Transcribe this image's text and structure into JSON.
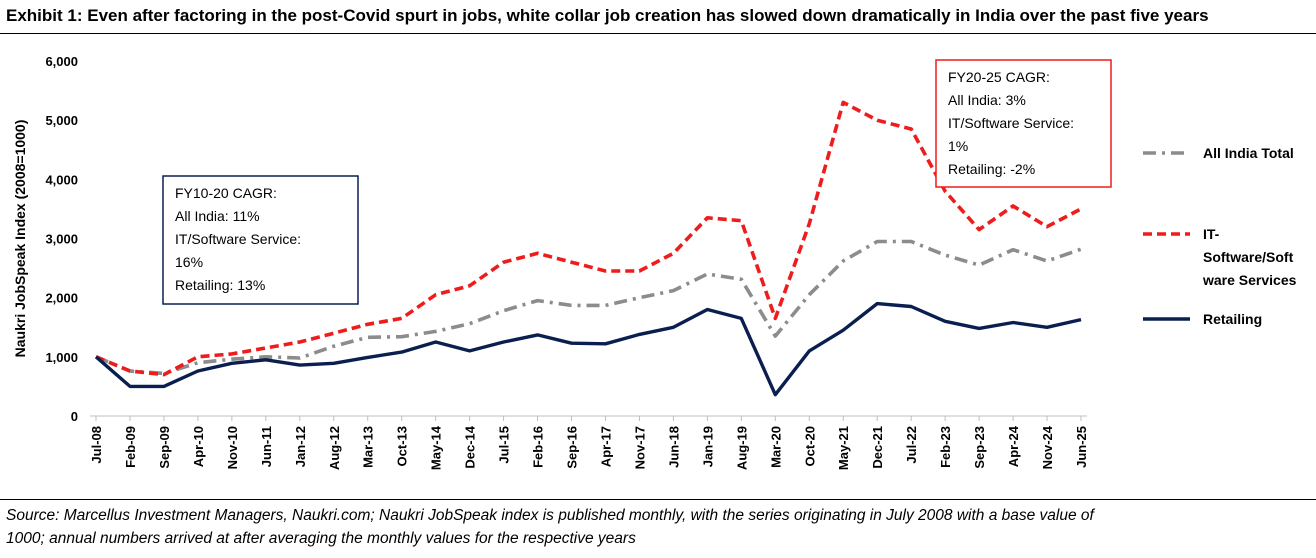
{
  "header": {
    "title": "Exhibit 1: Even after factoring in the post-Covid spurt in jobs, white collar job creation has slowed down dramatically in India over the past five years"
  },
  "footer": {
    "source_line1": "Source: Marcellus Investment Managers, Naukri.com; Naukri JobSpeak index is published monthly, with the series originating in July 2008 with a base value of",
    "source_line2": "1000; annual numbers arrived at after averaging the monthly values for the respective years"
  },
  "chart_data": {
    "type": "line",
    "ylabel": "Naukri JobSpeak Index (2008=1000)",
    "xlabel": "",
    "ylim": [
      0,
      6000
    ],
    "yticks": [
      0,
      1000,
      2000,
      3000,
      4000,
      5000,
      6000
    ],
    "ytick_labels": [
      "0",
      "1,000",
      "2,000",
      "3,000",
      "4,000",
      "5,000",
      "6,000"
    ],
    "x": [
      "Jul-08",
      "Feb-09",
      "Sep-09",
      "Apr-10",
      "Nov-10",
      "Jun-11",
      "Jan-12",
      "Aug-12",
      "Mar-13",
      "Oct-13",
      "May-14",
      "Dec-14",
      "Jul-15",
      "Feb-16",
      "Sep-16",
      "Apr-17",
      "Nov-17",
      "Jun-18",
      "Jan-19",
      "Aug-19",
      "Mar-20",
      "Oct-20",
      "May-21",
      "Dec-21",
      "Jul-22",
      "Feb-23",
      "Sep-23",
      "Apr-24",
      "Nov-24",
      "Jun-25"
    ],
    "grid": false,
    "legend_position": "right",
    "series": [
      {
        "name": "All India Total",
        "color": "#8c8c8c",
        "style": "dash-dot",
        "values": [
          1000,
          760,
          720,
          900,
          960,
          1000,
          980,
          1180,
          1330,
          1340,
          1430,
          1560,
          1780,
          1950,
          1870,
          1870,
          2000,
          2120,
          2400,
          2310,
          1350,
          2050,
          2620,
          2950,
          2950,
          2720,
          2550,
          2810,
          2620,
          2820
        ]
      },
      {
        "name": "IT-Software/Software Services",
        "color": "#ee1c1c",
        "style": "dashed",
        "values": [
          1000,
          760,
          700,
          1000,
          1050,
          1150,
          1250,
          1400,
          1550,
          1650,
          2050,
          2200,
          2600,
          2750,
          2600,
          2450,
          2450,
          2750,
          3350,
          3300,
          1650,
          3250,
          5300,
          5000,
          4850,
          3800,
          3150,
          3550,
          3200,
          3500
        ]
      },
      {
        "name": "Retailing",
        "color": "#0a1f50",
        "style": "solid",
        "values": [
          1000,
          500,
          500,
          760,
          890,
          950,
          860,
          890,
          990,
          1080,
          1250,
          1100,
          1250,
          1370,
          1230,
          1220,
          1380,
          1500,
          1800,
          1650,
          360,
          1100,
          1450,
          1900,
          1850,
          1600,
          1480,
          1580,
          1500,
          1630
        ]
      }
    ],
    "annotations": [
      {
        "name": "fy10-20-cagr",
        "border": "#0a1f50",
        "lines": [
          "FY10-20 CAGR:",
          "All India: 11%",
          "IT/Software Service:",
          "16%",
          "Retailing: 13%"
        ]
      },
      {
        "name": "fy20-25-cagr",
        "border": "#ee1c1c",
        "lines": [
          "FY20-25 CAGR:",
          "All India: 3%",
          "IT/Software Service:",
          "1%",
          "Retailing: -2%"
        ]
      }
    ]
  }
}
